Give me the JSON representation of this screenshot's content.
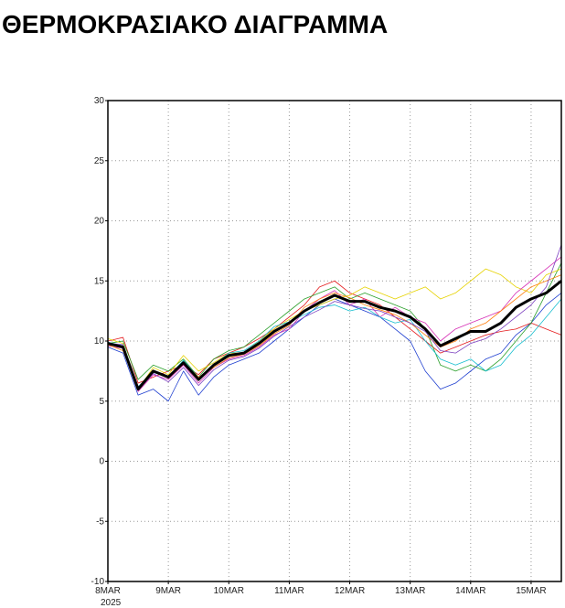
{
  "chart_data": {
    "type": "line",
    "title": "ΘΕΡΜΟΚΡΑΣΙΑΚΟ ΔΙΑΓΡΑΜΜΑ",
    "year_label": "2025",
    "x": [
      0,
      0.25,
      0.5,
      0.75,
      1,
      1.25,
      1.5,
      1.75,
      2,
      2.25,
      2.5,
      2.75,
      3,
      3.25,
      3.5,
      3.75,
      4,
      4.25,
      4.5,
      4.75,
      5,
      5.25,
      5.5,
      5.75,
      6,
      6.25,
      6.5,
      6.75,
      7,
      7.25,
      7.5
    ],
    "xlim": [
      0,
      7.5
    ],
    "xticks": [
      {
        "value": 0,
        "label": "8MAR"
      },
      {
        "value": 1,
        "label": "9MAR"
      },
      {
        "value": 2,
        "label": "10MAR"
      },
      {
        "value": 3,
        "label": "11MAR"
      },
      {
        "value": 4,
        "label": "12MAR"
      },
      {
        "value": 5,
        "label": "13MAR"
      },
      {
        "value": 6,
        "label": "14MAR"
      },
      {
        "value": 7,
        "label": "15MAR"
      }
    ],
    "ylim": [
      -10,
      30
    ],
    "yticks": [
      -10,
      -5,
      0,
      5,
      10,
      15,
      20,
      25,
      30
    ],
    "grid": true,
    "series": [
      {
        "color": "#e41a1c",
        "width": 0.8,
        "values": [
          10.0,
          10.3,
          6.5,
          7.0,
          7.5,
          8.0,
          7.2,
          8.5,
          9.0,
          9.5,
          10.2,
          11.0,
          12.0,
          13.0,
          14.5,
          15.0,
          14.0,
          13.5,
          13.0,
          12.0,
          11.0,
          10.0,
          9.0,
          9.5,
          10.0,
          10.5,
          10.8,
          11.0,
          11.5,
          11.0,
          10.5
        ]
      },
      {
        "color": "#1f3fd0",
        "width": 0.8,
        "values": [
          9.5,
          9.0,
          5.5,
          6.0,
          5.0,
          7.5,
          5.5,
          7.0,
          8.0,
          8.5,
          9.0,
          10.0,
          11.0,
          12.0,
          13.0,
          13.5,
          13.0,
          12.5,
          12.0,
          11.0,
          10.0,
          7.5,
          6.0,
          6.5,
          7.5,
          8.5,
          9.0,
          10.5,
          11.5,
          13.0,
          14.0
        ]
      },
      {
        "color": "#2ca02c",
        "width": 0.8,
        "values": [
          9.8,
          10.0,
          6.8,
          8.0,
          7.5,
          8.5,
          7.0,
          8.5,
          9.2,
          9.5,
          10.5,
          11.5,
          12.5,
          13.5,
          14.0,
          14.5,
          13.5,
          14.0,
          13.5,
          13.0,
          12.5,
          11.0,
          8.0,
          7.5,
          8.0,
          7.5,
          8.5,
          10.0,
          11.5,
          14.0,
          16.5
        ]
      },
      {
        "color": "#e6d200",
        "width": 0.8,
        "values": [
          10.2,
          9.8,
          6.0,
          7.8,
          7.2,
          8.8,
          7.5,
          8.2,
          9.0,
          9.0,
          10.0,
          11.0,
          11.8,
          12.5,
          13.0,
          13.5,
          13.8,
          14.5,
          14.0,
          13.5,
          14.0,
          14.5,
          13.5,
          14.0,
          15.0,
          16.0,
          15.5,
          14.5,
          14.0,
          15.5,
          16.0
        ]
      },
      {
        "color": "#d62fb5",
        "width": 0.8,
        "values": [
          9.6,
          9.4,
          5.8,
          7.2,
          6.8,
          8.0,
          6.5,
          7.8,
          8.5,
          8.8,
          9.5,
          10.5,
          11.0,
          12.5,
          13.5,
          14.2,
          13.0,
          13.5,
          12.0,
          12.8,
          12.0,
          11.5,
          10.0,
          11.0,
          11.5,
          12.0,
          12.5,
          14.0,
          15.0,
          16.0,
          17.0
        ]
      },
      {
        "color": "#17becf",
        "width": 0.8,
        "values": [
          9.9,
          9.6,
          6.2,
          7.4,
          7.0,
          8.4,
          6.9,
          8.0,
          9.0,
          9.2,
          10.0,
          11.2,
          11.6,
          12.2,
          12.8,
          13.0,
          12.5,
          12.8,
          12.0,
          11.5,
          11.8,
          10.0,
          8.5,
          8.0,
          8.5,
          7.5,
          8.0,
          9.5,
          10.5,
          12.0,
          13.5
        ]
      },
      {
        "color": "#ff7f0e",
        "width": 0.8,
        "values": [
          9.7,
          9.2,
          6.1,
          7.6,
          6.9,
          8.1,
          7.0,
          7.8,
          8.6,
          8.9,
          9.6,
          10.6,
          11.3,
          12.8,
          13.5,
          14.0,
          13.6,
          13.0,
          12.6,
          12.2,
          11.5,
          10.5,
          9.5,
          10.0,
          11.0,
          11.5,
          12.5,
          13.5,
          14.5,
          15.0,
          15.5
        ]
      },
      {
        "color": "#7b3fbf",
        "width": 0.8,
        "values": [
          9.8,
          9.7,
          5.9,
          7.3,
          6.6,
          7.8,
          6.3,
          7.6,
          8.4,
          8.7,
          9.4,
          10.4,
          11.2,
          12.0,
          12.6,
          13.3,
          13.0,
          12.7,
          12.5,
          12.0,
          11.5,
          10.8,
          9.2,
          9.0,
          9.8,
          10.2,
          11.0,
          12.0,
          13.0,
          14.5,
          18.0
        ]
      },
      {
        "color": "#000000",
        "width": 3,
        "values": [
          9.8,
          9.5,
          6.0,
          7.5,
          7.0,
          8.2,
          6.8,
          8.0,
          8.8,
          9.0,
          9.8,
          10.8,
          11.5,
          12.5,
          13.2,
          13.8,
          13.3,
          13.3,
          12.8,
          12.5,
          12.0,
          11.0,
          9.6,
          10.2,
          10.8,
          10.8,
          11.5,
          12.8,
          13.5,
          14.0,
          15.0
        ]
      }
    ]
  }
}
